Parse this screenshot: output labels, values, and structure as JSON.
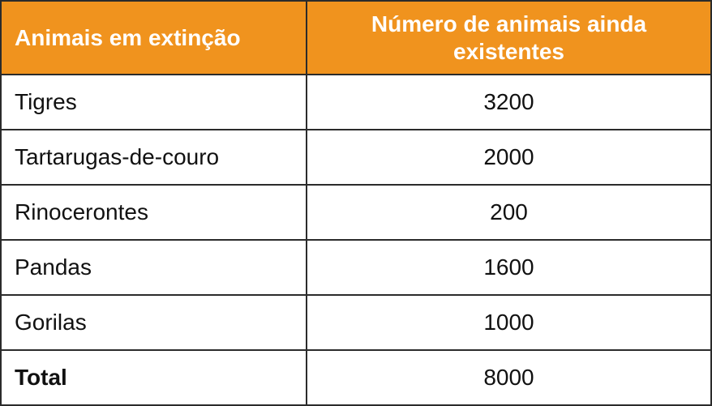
{
  "table": {
    "header": [
      "Animais em extinção",
      "Número de animais ainda existentes"
    ],
    "rows": [
      [
        "Tigres",
        3200
      ],
      [
        "Tartarugas-de-couro",
        2000
      ],
      [
        "Rinocerontes",
        200
      ],
      [
        "Pandas",
        1600
      ],
      [
        "Gorilas",
        1000
      ],
      [
        "Total",
        8000
      ]
    ]
  }
}
